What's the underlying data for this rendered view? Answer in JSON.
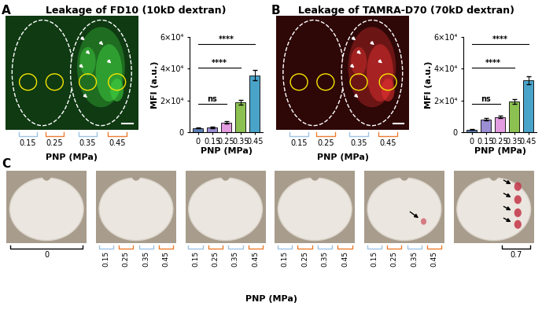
{
  "chart_data": [
    {
      "type": "bar",
      "panel": "A",
      "title": "Leakage of FD10 (10kD dextran)",
      "xlabel": "PNP (MPa)",
      "ylabel": "MFI (a.u.)",
      "categories": [
        "0",
        "0.15",
        "0.25",
        "0.35",
        "0.45"
      ],
      "values": [
        2500,
        3000,
        6000,
        19000,
        36000
      ],
      "errors": [
        300,
        400,
        800,
        1500,
        3000
      ],
      "colors": [
        "#5b7fb5",
        "#9b8ed3",
        "#e39ce0",
        "#8cc152",
        "#4aa3c8"
      ],
      "ylim": [
        0,
        60000
      ],
      "yticks": [
        0,
        {
          "value": 20000,
          "label": "2×10⁴"
        },
        {
          "value": 40000,
          "label": "4×10⁴"
        },
        {
          "value": 60000,
          "label": "6×10⁴"
        }
      ],
      "comparisons": [
        {
          "from": "0",
          "to": "0.25",
          "label": "ns"
        },
        {
          "from": "0",
          "to": "0.35",
          "label": "****"
        },
        {
          "from": "0",
          "to": "0.45",
          "label": "****"
        }
      ]
    },
    {
      "type": "bar",
      "panel": "B",
      "title": "Leakage of TAMRA-D70 (70kD dextran)",
      "xlabel": "PNP (MPa)",
      "ylabel": "MFI (a.u.)",
      "categories": [
        "0",
        "0.15",
        "0.25",
        "0.35",
        "0.45"
      ],
      "values": [
        1500,
        8000,
        9500,
        19500,
        33000
      ],
      "errors": [
        200,
        800,
        800,
        1500,
        2500
      ],
      "colors": [
        "#5b7fb5",
        "#9b8ed3",
        "#e39ce0",
        "#8cc152",
        "#4aa3c8"
      ],
      "ylim": [
        0,
        60000
      ],
      "yticks": [
        0,
        {
          "value": 20000,
          "label": "2×10⁴"
        },
        {
          "value": 40000,
          "label": "4×10⁴"
        },
        {
          "value": 60000,
          "label": "6×10⁴"
        }
      ],
      "comparisons": [
        {
          "from": "0",
          "to": "0.25",
          "label": "ns"
        },
        {
          "from": "0",
          "to": "0.35",
          "label": "****"
        },
        {
          "from": "0",
          "to": "0.45",
          "label": "****"
        }
      ]
    }
  ],
  "images": [
    {
      "panel": "A",
      "color": "#3fcf3f",
      "pnp_labels": [
        "0.15",
        "0.25",
        "0.35",
        "0.45"
      ],
      "xlabel": "PNP (MPa)"
    },
    {
      "panel": "B",
      "color": "#e23030",
      "pnp_labels": [
        "0.15",
        "0.25",
        "0.35",
        "0.45"
      ],
      "xlabel": "PNP (MPa)"
    }
  ],
  "slices": {
    "panel": "C",
    "xlabel": "PNP (MPa)",
    "groups": [
      [
        "0"
      ],
      [
        "0.15",
        "0.25",
        "0.35",
        "0.45"
      ],
      [
        "0.15",
        "0.25",
        "0.35",
        "0.45"
      ],
      [
        "0.15",
        "0.25",
        "0.35",
        "0.45"
      ],
      [
        "0.15",
        "0.25",
        "0.35",
        "0.45"
      ],
      [
        "0.7"
      ]
    ]
  }
}
